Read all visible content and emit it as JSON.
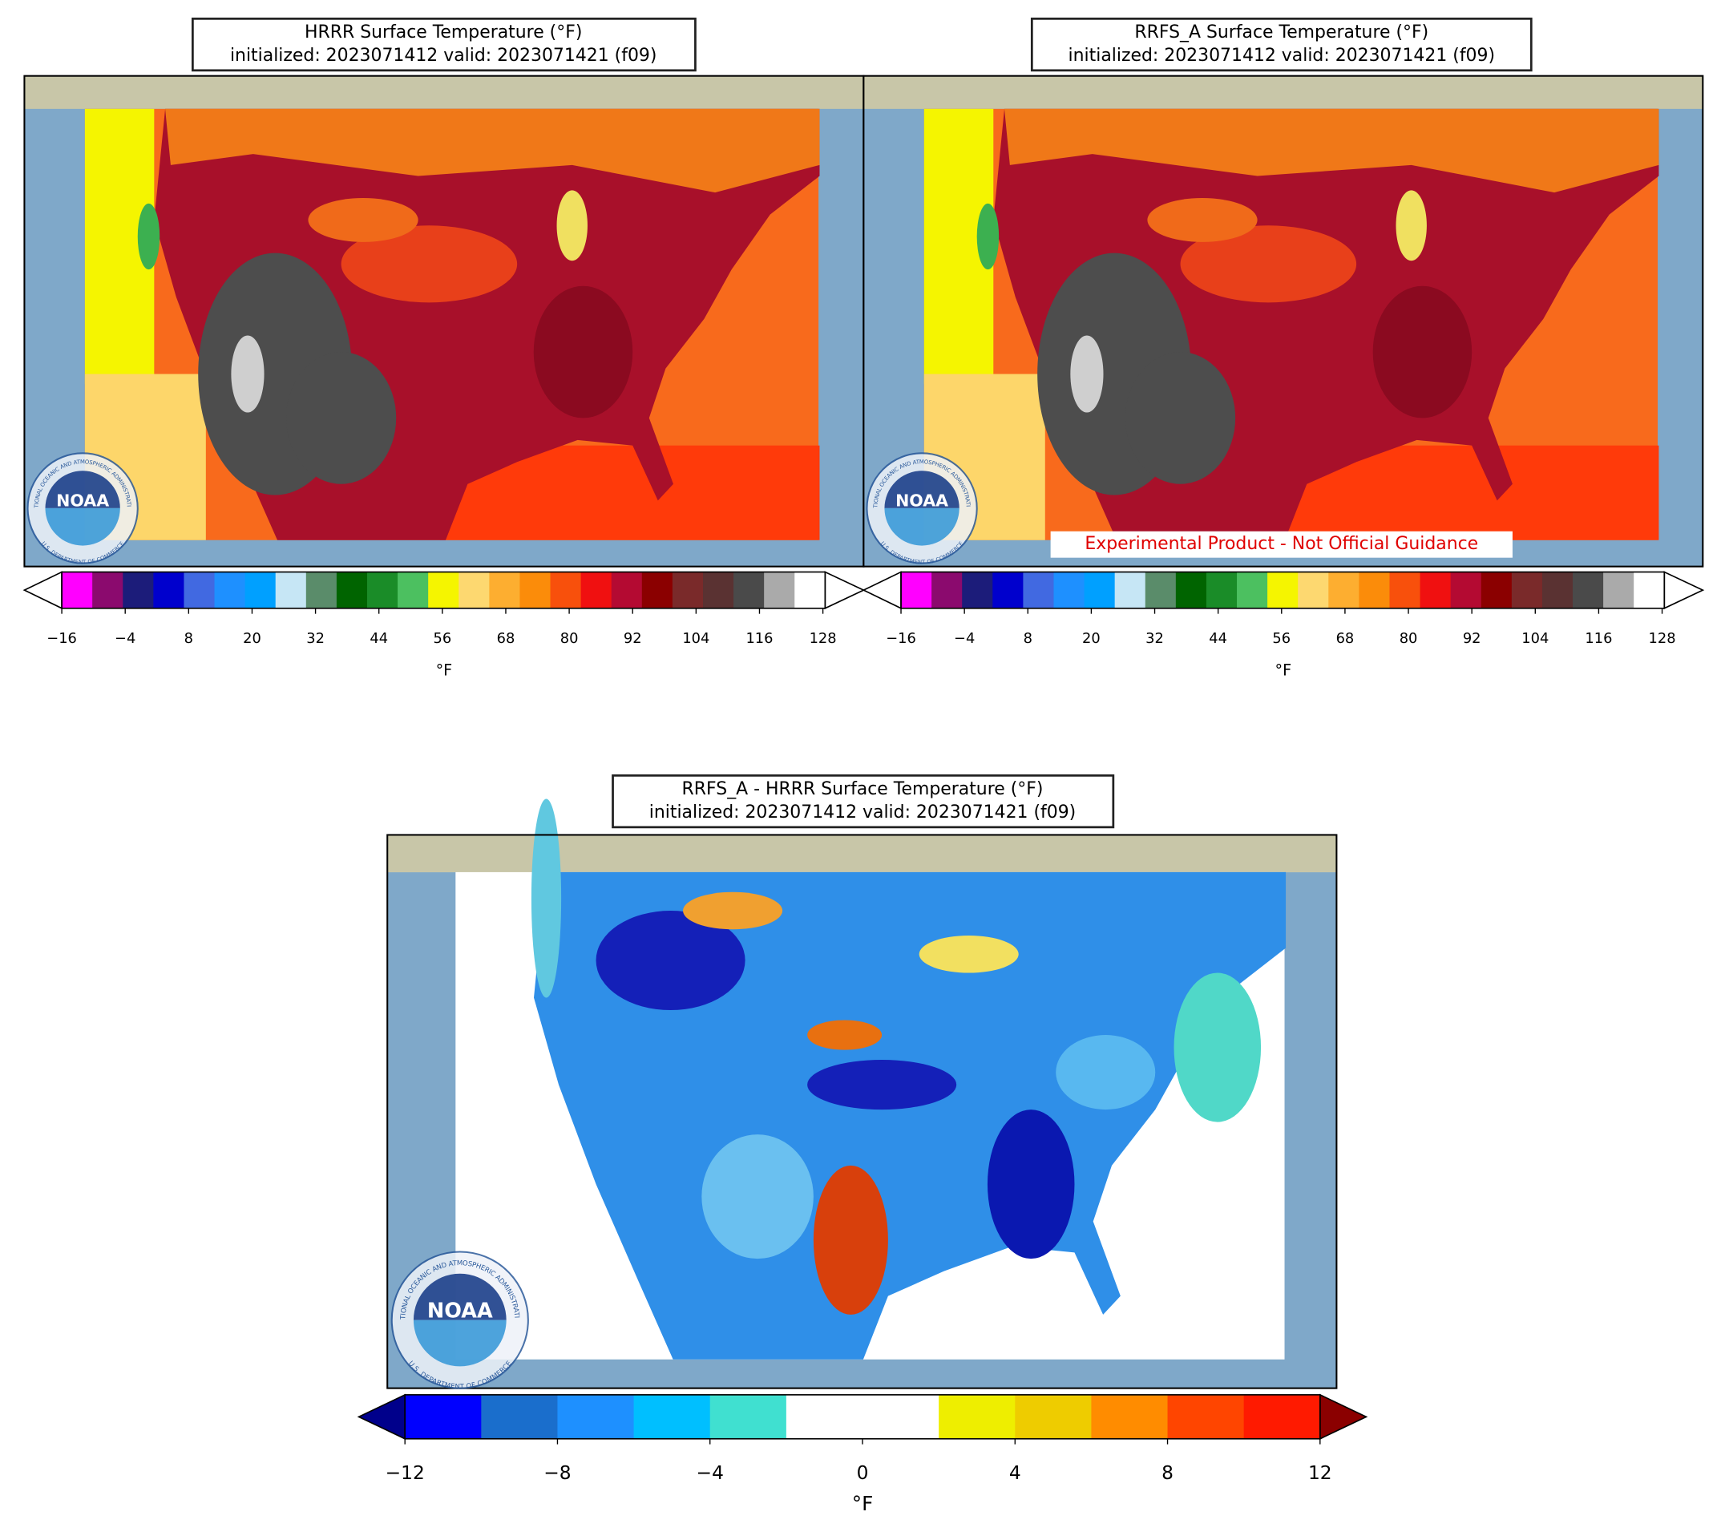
{
  "panels": [
    {
      "title": "HRRR Surface Temperature (°F)",
      "subtitle": "initialized: 2023071412 valid: 2023071421 (f09)",
      "colorbar": {
        "ticks": [
          "−16",
          "−4",
          "8",
          "20",
          "32",
          "44",
          "56",
          "68",
          "80",
          "92",
          "104",
          "116",
          "128"
        ],
        "label": "°F",
        "colors": [
          "#ff00ff",
          "#8b0a6e",
          "#1c1c7a",
          "#0000cd",
          "#4169e1",
          "#1e90ff",
          "#00a0ff",
          "#c6e6f5",
          "#5a8c6a",
          "#006400",
          "#1a8c28",
          "#4cc060",
          "#f5f500",
          "#fdd870",
          "#fdae30",
          "#fb8c0a",
          "#f8500c",
          "#f01010",
          "#b40a32",
          "#8b0000",
          "#7a2a2a",
          "#5a3232",
          "#4a4a4a",
          "#aaaaaa",
          "#ffffff"
        ],
        "extend_colors": [
          "#ffffff",
          "#ffffff"
        ]
      }
    },
    {
      "title": "RRFS_A Surface Temperature (°F)",
      "subtitle": "initialized: 2023071412 valid: 2023071421 (f09)",
      "note": "Experimental Product - Not Official Guidance",
      "colorbar": {
        "ticks": [
          "−16",
          "−4",
          "8",
          "20",
          "32",
          "44",
          "56",
          "68",
          "80",
          "92",
          "104",
          "116",
          "128"
        ],
        "label": "°F",
        "colors": [
          "#ff00ff",
          "#8b0a6e",
          "#1c1c7a",
          "#0000cd",
          "#4169e1",
          "#1e90ff",
          "#00a0ff",
          "#c6e6f5",
          "#5a8c6a",
          "#006400",
          "#1a8c28",
          "#4cc060",
          "#f5f500",
          "#fdd870",
          "#fdae30",
          "#fb8c0a",
          "#f8500c",
          "#f01010",
          "#b40a32",
          "#8b0000",
          "#7a2a2a",
          "#5a3232",
          "#4a4a4a",
          "#aaaaaa",
          "#ffffff"
        ],
        "extend_colors": [
          "#ffffff",
          "#ffffff"
        ]
      }
    },
    {
      "title": "RRFS_A - HRRR Surface Temperature (°F)",
      "subtitle": "initialized: 2023071412 valid: 2023071421 (f09)",
      "colorbar": {
        "ticks": [
          "−12",
          "−8",
          "−4",
          "0",
          "4",
          "8",
          "12"
        ],
        "label": "°F",
        "colors": [
          "#0000ff",
          "#1a6ecc",
          "#1e90ff",
          "#00bfff",
          "#40e0d0",
          "#ffffff",
          "#ffffff",
          "#eeee00",
          "#eecc00",
          "#ff8c00",
          "#ff4500",
          "#ff1a00"
        ],
        "extend_colors": [
          "#00008b",
          "#8b0000"
        ]
      }
    }
  ],
  "logo": {
    "name": "NOAA",
    "agency": "NATIONAL OCEANIC AND ATMOSPHERIC ADMINISTRATION",
    "department": "U.S. DEPARTMENT OF COMMERCE"
  }
}
